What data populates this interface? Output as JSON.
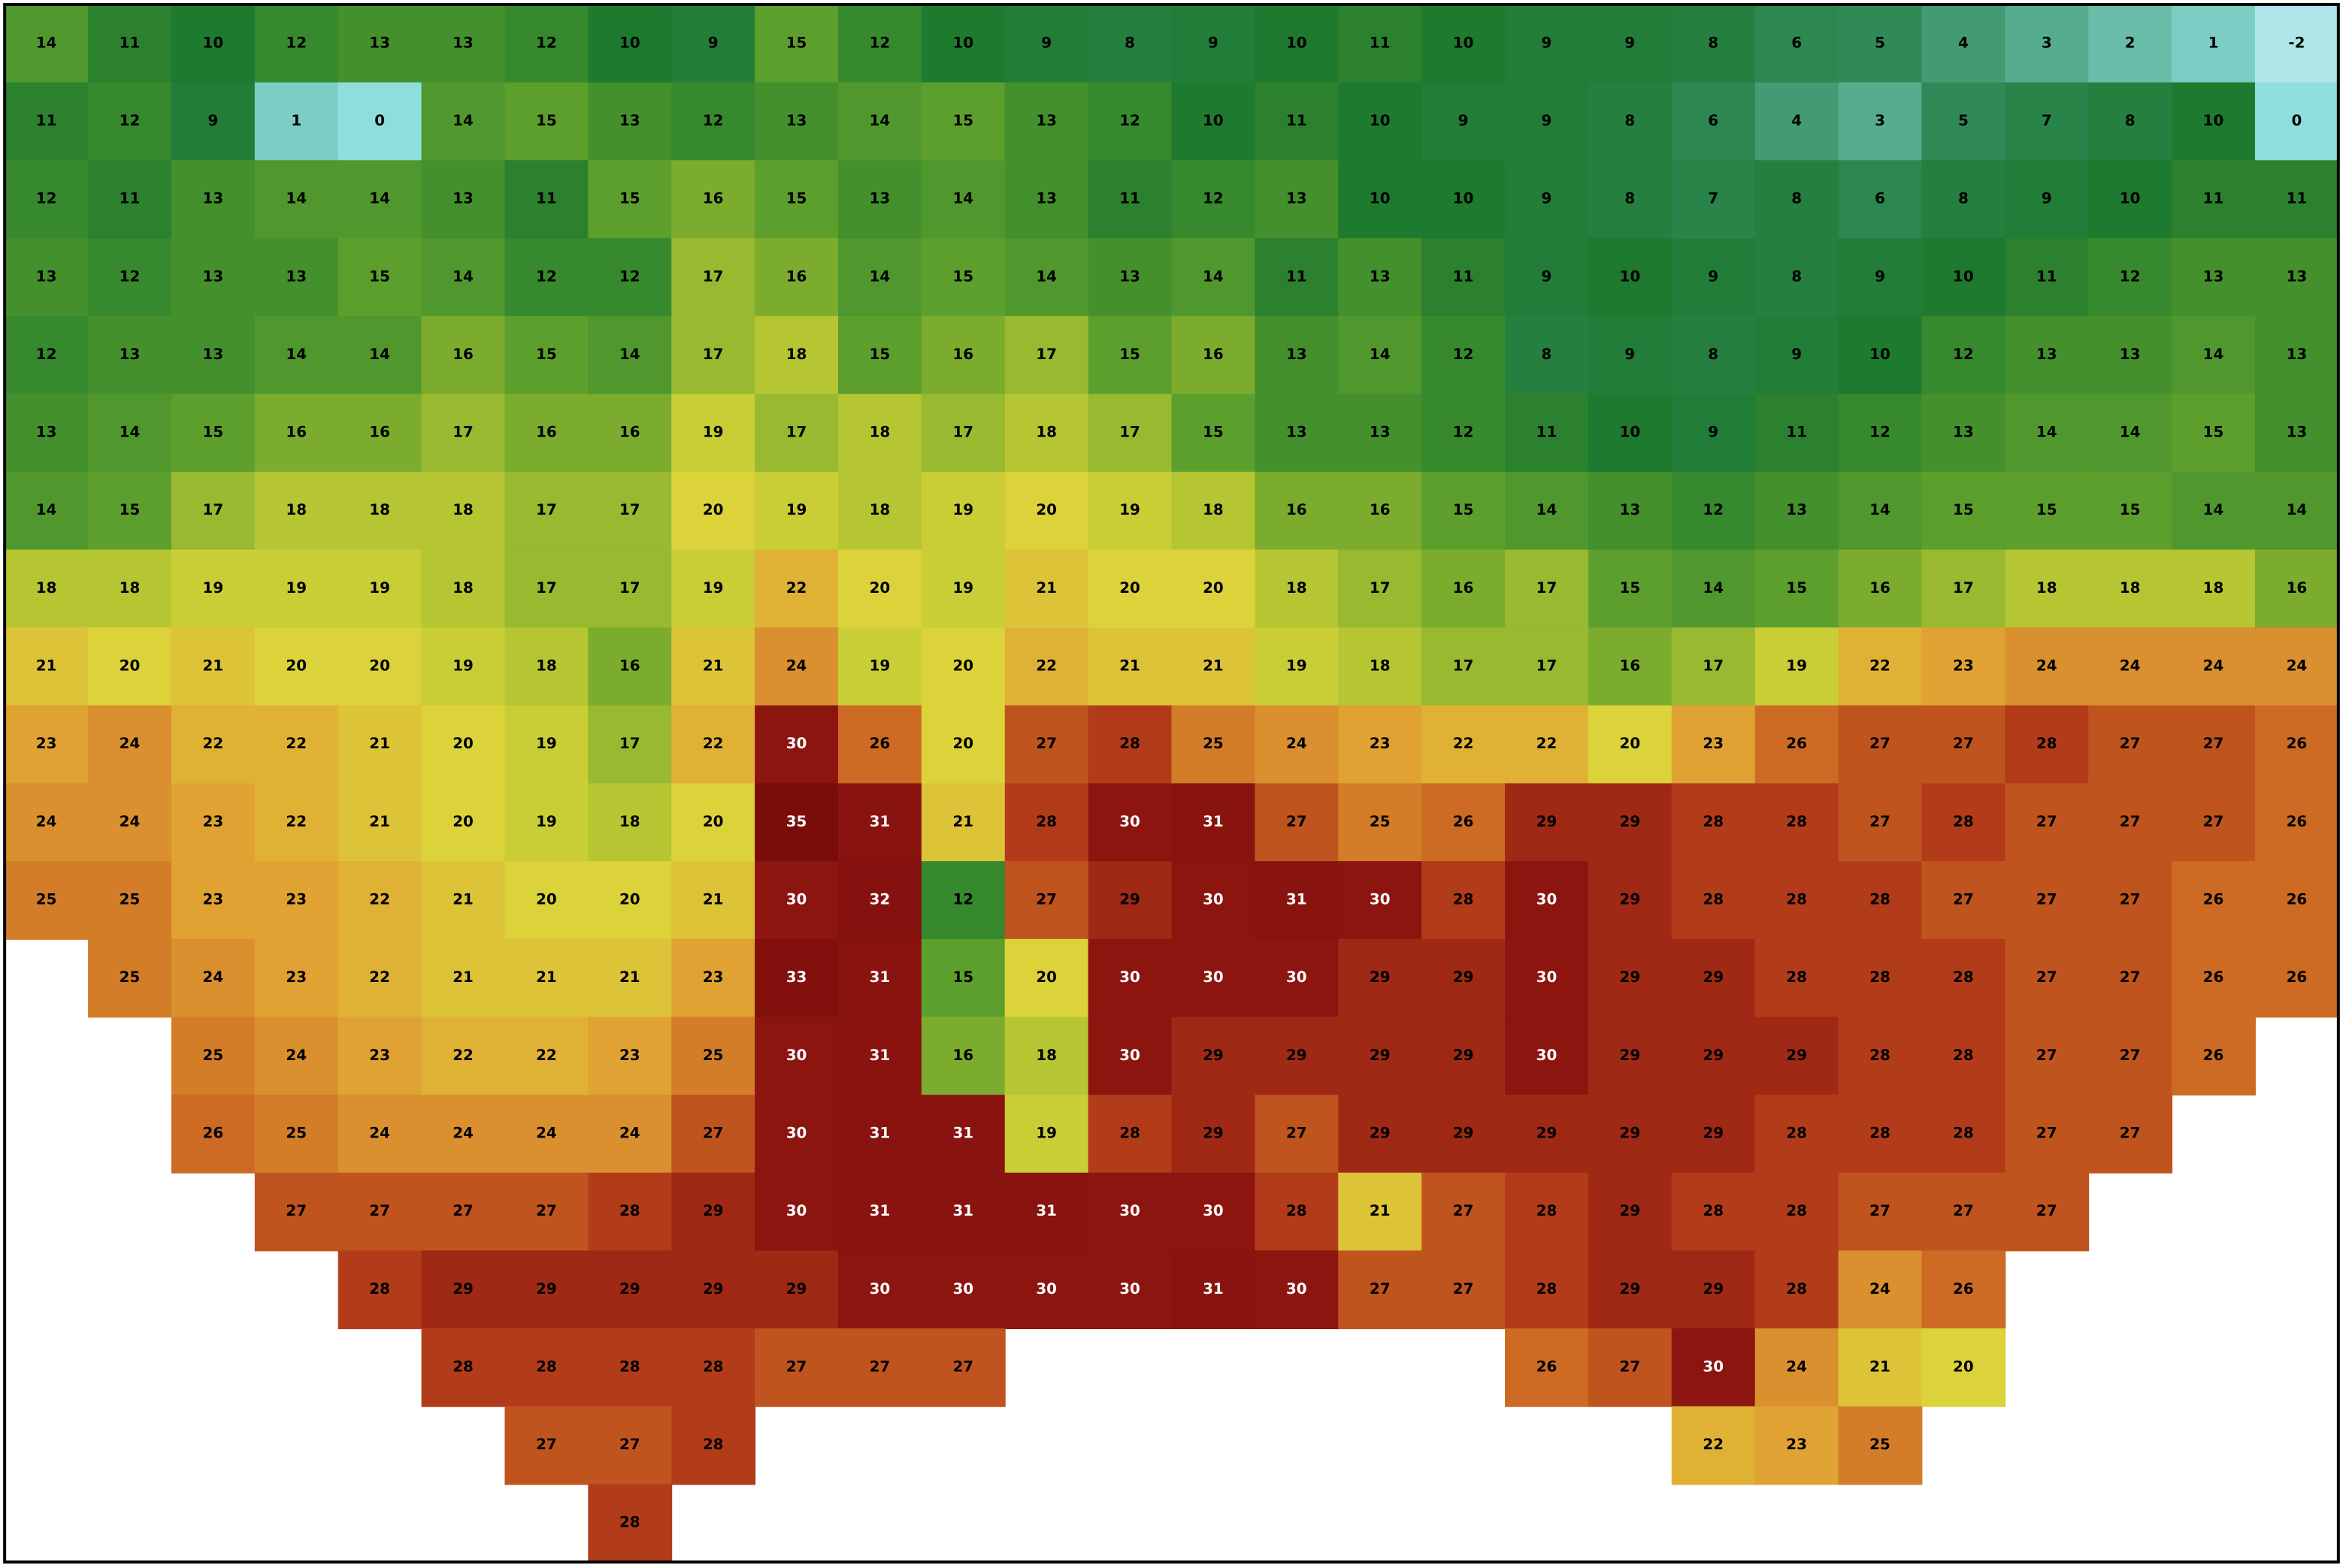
{
  "map": {
    "rows": [
      [
        14,
        11,
        10,
        12,
        13,
        13,
        12,
        10,
        9,
        15,
        12,
        10,
        9,
        8,
        9,
        10,
        11,
        10,
        9,
        9,
        8,
        6,
        5,
        4,
        3,
        2,
        1,
        -2
      ],
      [
        11,
        12,
        9,
        1,
        0,
        14,
        15,
        13,
        12,
        13,
        14,
        15,
        13,
        12,
        10,
        11,
        10,
        9,
        9,
        8,
        6,
        4,
        3,
        5,
        7,
        8,
        10,
        0
      ],
      [
        12,
        11,
        13,
        14,
        14,
        13,
        11,
        15,
        16,
        15,
        13,
        14,
        13,
        11,
        12,
        13,
        10,
        10,
        9,
        8,
        7,
        8,
        6,
        8,
        9,
        10,
        11,
        11
      ],
      [
        13,
        12,
        13,
        13,
        15,
        14,
        12,
        12,
        17,
        16,
        14,
        15,
        14,
        13,
        14,
        11,
        13,
        11,
        9,
        10,
        9,
        8,
        9,
        10,
        11,
        12,
        13,
        13
      ],
      [
        12,
        13,
        13,
        14,
        14,
        16,
        15,
        14,
        17,
        18,
        15,
        16,
        17,
        15,
        16,
        13,
        14,
        12,
        8,
        9,
        8,
        9,
        10,
        12,
        13,
        13,
        14,
        13
      ],
      [
        13,
        14,
        15,
        16,
        16,
        17,
        16,
        16,
        19,
        17,
        18,
        17,
        18,
        17,
        15,
        13,
        13,
        12,
        11,
        10,
        9,
        11,
        12,
        13,
        14,
        14,
        15,
        13
      ],
      [
        14,
        15,
        17,
        18,
        18,
        18,
        17,
        17,
        20,
        19,
        18,
        19,
        20,
        19,
        18,
        16,
        16,
        15,
        14,
        13,
        12,
        13,
        14,
        15,
        15,
        15,
        14,
        14
      ],
      [
        18,
        18,
        19,
        19,
        19,
        18,
        17,
        17,
        19,
        22,
        20,
        19,
        21,
        20,
        20,
        18,
        17,
        16,
        17,
        15,
        14,
        15,
        16,
        17,
        18,
        18,
        18,
        16
      ],
      [
        21,
        20,
        21,
        20,
        20,
        19,
        18,
        16,
        21,
        24,
        19,
        20,
        22,
        21,
        21,
        19,
        18,
        17,
        17,
        16,
        17,
        19,
        22,
        23,
        24,
        24,
        24,
        24
      ],
      [
        23,
        24,
        22,
        22,
        21,
        20,
        19,
        17,
        22,
        30,
        26,
        20,
        27,
        28,
        25,
        24,
        23,
        22,
        22,
        20,
        23,
        26,
        27,
        27,
        28,
        27,
        27,
        26
      ],
      [
        24,
        24,
        23,
        22,
        21,
        20,
        19,
        18,
        20,
        35,
        31,
        21,
        28,
        30,
        31,
        27,
        25,
        26,
        29,
        29,
        28,
        28,
        27,
        28,
        27,
        27,
        27,
        26
      ],
      [
        25,
        25,
        23,
        23,
        22,
        21,
        20,
        20,
        21,
        30,
        32,
        12,
        27,
        29,
        30,
        31,
        30,
        28,
        30,
        29,
        28,
        28,
        28,
        27,
        27,
        27,
        26,
        26
      ],
      [
        null,
        25,
        24,
        23,
        22,
        21,
        21,
        21,
        23,
        33,
        31,
        15,
        20,
        30,
        30,
        30,
        29,
        29,
        30,
        29,
        29,
        28,
        28,
        28,
        27,
        27,
        26,
        26
      ],
      [
        null,
        null,
        25,
        24,
        23,
        22,
        22,
        23,
        25,
        30,
        31,
        16,
        18,
        30,
        29,
        29,
        29,
        29,
        30,
        29,
        29,
        29,
        28,
        28,
        27,
        27,
        26,
        null
      ],
      [
        null,
        null,
        26,
        25,
        24,
        24,
        24,
        24,
        27,
        30,
        31,
        31,
        19,
        28,
        29,
        27,
        29,
        29,
        29,
        29,
        29,
        28,
        28,
        28,
        27,
        27,
        null,
        null
      ],
      [
        null,
        null,
        null,
        27,
        27,
        27,
        27,
        28,
        29,
        30,
        31,
        31,
        31,
        30,
        30,
        28,
        21,
        27,
        28,
        29,
        28,
        28,
        27,
        27,
        27,
        null,
        null,
        null
      ],
      [
        null,
        null,
        null,
        null,
        28,
        29,
        29,
        29,
        29,
        29,
        30,
        30,
        30,
        30,
        31,
        30,
        27,
        27,
        28,
        29,
        29,
        28,
        24,
        26,
        null,
        null,
        null,
        null
      ],
      [
        null,
        null,
        null,
        null,
        null,
        28,
        28,
        28,
        28,
        27,
        27,
        27,
        null,
        null,
        null,
        null,
        null,
        null,
        26,
        27,
        30,
        24,
        21,
        20,
        null,
        null,
        null,
        null
      ],
      [
        null,
        null,
        null,
        null,
        null,
        null,
        27,
        27,
        28,
        null,
        null,
        null,
        null,
        null,
        null,
        null,
        null,
        null,
        null,
        null,
        22,
        23,
        25,
        null,
        null,
        null,
        null,
        null
      ],
      [
        null,
        null,
        null,
        null,
        null,
        null,
        null,
        28,
        null,
        null,
        null,
        null,
        null,
        null,
        null,
        null,
        null,
        null,
        null,
        null,
        null,
        null,
        null,
        null,
        null,
        null,
        null,
        null
      ]
    ]
  }
}
